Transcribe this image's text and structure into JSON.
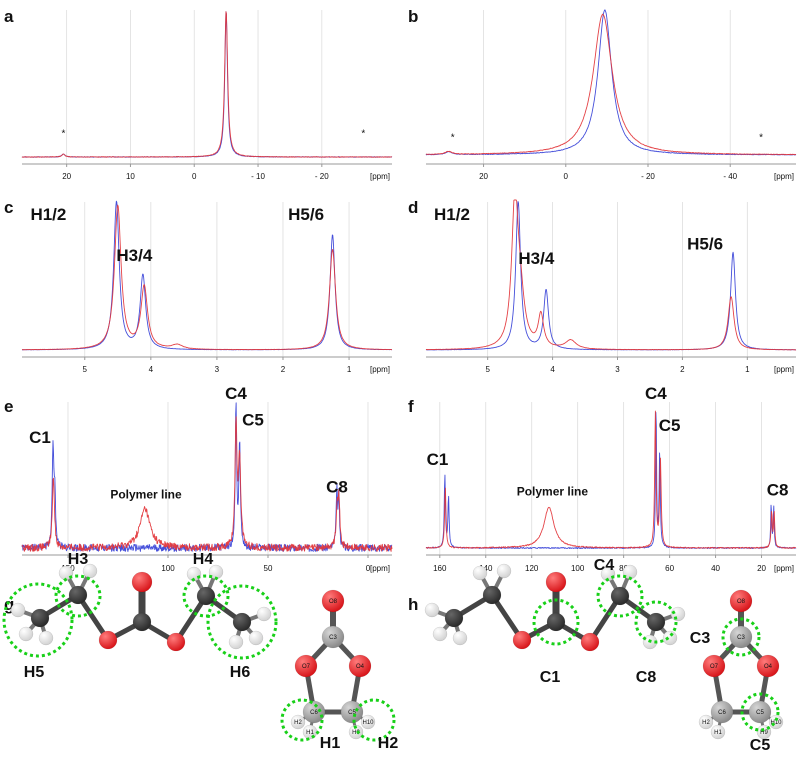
{
  "colors": {
    "series_blue": "#3b46d8",
    "series_red": "#e3383c",
    "axis": "#999999",
    "grid": "#dddddd",
    "highlight": "#19d019"
  },
  "chart_data": [
    {
      "panel": "a",
      "type": "line",
      "unit_label": "[ppm]",
      "xlim": [
        27,
        -31
      ],
      "ticks": [
        20,
        10,
        0,
        -10,
        -20
      ],
      "tick_labels": [
        "20",
        "10",
        "0",
        "- 10",
        "- 20"
      ],
      "series": [
        {
          "name": "blue",
          "color": "#3b46d8",
          "peaks": [
            {
              "pos": -5.0,
              "width": 0.25,
              "height": 1.0
            },
            {
              "pos": 20.5,
              "width": 0.3,
              "height": 0.02
            }
          ]
        },
        {
          "name": "red",
          "color": "#e3383c",
          "peaks": [
            {
              "pos": -5.0,
              "width": 0.28,
              "height": 1.0
            },
            {
              "pos": 20.5,
              "width": 0.3,
              "height": 0.02
            }
          ]
        }
      ],
      "annotations": [
        {
          "text": "*",
          "x": 20.5,
          "y": 0.14
        },
        {
          "text": "*",
          "x": -26.5,
          "y": 0.14
        }
      ],
      "noise": 0.002
    },
    {
      "panel": "b",
      "type": "line",
      "unit_label": "[ppm]",
      "xlim": [
        34,
        -56
      ],
      "ticks": [
        20,
        0,
        -20,
        -40
      ],
      "tick_labels": [
        "20",
        "0",
        "- 20",
        "- 40"
      ],
      "series": [
        {
          "name": "blue",
          "color": "#3b46d8",
          "peaks": [
            {
              "pos": -9.5,
              "width": 2.0,
              "height": 1.0
            },
            {
              "pos": 28.5,
              "width": 1.0,
              "height": 0.02
            }
          ]
        },
        {
          "name": "red",
          "color": "#e3383c",
          "peaks": [
            {
              "pos": -9.0,
              "width": 2.8,
              "height": 0.97
            },
            {
              "pos": 28.5,
              "width": 1.0,
              "height": 0.02
            }
          ]
        }
      ],
      "annotations": [
        {
          "text": "*",
          "x": 27.5,
          "y": 0.1
        },
        {
          "text": "*",
          "x": -47.5,
          "y": 0.1
        }
      ],
      "noise": 0.002
    },
    {
      "panel": "c",
      "type": "line",
      "unit_label": "[ppm]",
      "xlim": [
        5.95,
        0.35
      ],
      "ticks": [
        5,
        4,
        3,
        2,
        1
      ],
      "tick_labels": [
        "5",
        "4",
        "3",
        "2",
        "1"
      ],
      "series": [
        {
          "name": "blue",
          "color": "#3b46d8",
          "peaks": [
            {
              "pos": 4.52,
              "width": 0.05,
              "height": 1.0
            },
            {
              "pos": 4.12,
              "width": 0.05,
              "height": 0.5
            },
            {
              "pos": 1.25,
              "width": 0.045,
              "height": 0.78
            }
          ]
        },
        {
          "name": "red",
          "color": "#e3383c",
          "peaks": [
            {
              "pos": 4.5,
              "width": 0.06,
              "height": 0.97
            },
            {
              "pos": 4.1,
              "width": 0.06,
              "height": 0.42
            },
            {
              "pos": 3.6,
              "width": 0.1,
              "height": 0.03
            },
            {
              "pos": 1.25,
              "width": 0.055,
              "height": 0.68
            }
          ]
        }
      ],
      "annotations": [
        {
          "text": "H1/2",
          "x": 5.55,
          "y": 0.88
        },
        {
          "text": "H3/4",
          "x": 4.25,
          "y": 0.6
        },
        {
          "text": "H5/6",
          "x": 1.65,
          "y": 0.88
        }
      ],
      "noise": 0.001
    },
    {
      "panel": "d",
      "type": "line",
      "unit_label": "[ppm]",
      "xlim": [
        5.95,
        0.25
      ],
      "ticks": [
        5,
        4,
        3,
        2,
        1
      ],
      "tick_labels": [
        "5",
        "4",
        "3",
        "2",
        "1"
      ],
      "series": [
        {
          "name": "blue",
          "color": "#3b46d8",
          "peaks": [
            {
              "pos": 4.53,
              "width": 0.045,
              "height": 1.0
            },
            {
              "pos": 4.1,
              "width": 0.045,
              "height": 0.4
            },
            {
              "pos": 1.22,
              "width": 0.045,
              "height": 0.66
            }
          ]
        },
        {
          "name": "red",
          "color": "#e3383c",
          "peaks": [
            {
              "pos": 4.58,
              "width": 0.06,
              "height": 0.95
            },
            {
              "pos": 4.5,
              "width": 0.08,
              "height": 0.3
            },
            {
              "pos": 4.18,
              "width": 0.05,
              "height": 0.22
            },
            {
              "pos": 3.72,
              "width": 0.1,
              "height": 0.06
            },
            {
              "pos": 1.25,
              "width": 0.055,
              "height": 0.36
            }
          ]
        }
      ],
      "annotations": [
        {
          "text": "H1/2",
          "x": 5.55,
          "y": 0.88
        },
        {
          "text": "H3/4",
          "x": 4.25,
          "y": 0.58
        },
        {
          "text": "H5/6",
          "x": 1.65,
          "y": 0.68
        }
      ],
      "noise": 0.001
    },
    {
      "panel": "e",
      "type": "line",
      "unit_label": "[ppm]",
      "xlim": [
        173,
        -12
      ],
      "ticks": [
        150,
        100,
        50,
        0
      ],
      "tick_labels": [
        "150",
        "100",
        "50",
        "0"
      ],
      "series": [
        {
          "name": "blue",
          "color": "#3b46d8",
          "peaks": [
            {
              "pos": 157.5,
              "width": 0.5,
              "height": 0.68
            },
            {
              "pos": 156.6,
              "width": 0.4,
              "height": 0.34
            },
            {
              "pos": 66.0,
              "width": 0.4,
              "height": 1.0
            },
            {
              "pos": 64.2,
              "width": 0.45,
              "height": 0.72
            },
            {
              "pos": 15.6,
              "width": 0.4,
              "height": 0.38
            },
            {
              "pos": 14.6,
              "width": 0.4,
              "height": 0.34
            }
          ]
        },
        {
          "name": "red",
          "color": "#e3383c",
          "peaks": [
            {
              "pos": 157.3,
              "width": 0.6,
              "height": 0.5
            },
            {
              "pos": 111.5,
              "width": 3.0,
              "height": 0.27
            },
            {
              "pos": 66.0,
              "width": 0.6,
              "height": 0.82
            },
            {
              "pos": 64.2,
              "width": 0.7,
              "height": 0.6
            },
            {
              "pos": 15.4,
              "width": 0.6,
              "height": 0.3
            },
            {
              "pos": 14.5,
              "width": 0.5,
              "height": 0.28
            }
          ]
        }
      ],
      "annotations": [
        {
          "text": "C1",
          "x": 164.0,
          "y": 0.72
        },
        {
          "text": "Polymer line",
          "x": 111.0,
          "y": 0.34,
          "small": true
        },
        {
          "text": "C4",
          "x": 66.0,
          "y": 1.02
        },
        {
          "text": "C5",
          "x": 57.5,
          "y": 0.84
        },
        {
          "text": "C8",
          "x": 15.5,
          "y": 0.38
        }
      ],
      "noise": 0.025
    },
    {
      "panel": "f",
      "type": "line",
      "unit_label": "[ppm]",
      "xlim": [
        166,
        5
      ],
      "ticks": [
        160,
        140,
        120,
        100,
        80,
        60,
        40,
        20
      ],
      "tick_labels": [
        "160",
        "140",
        "120",
        "100",
        "80",
        "60",
        "40",
        "20"
      ],
      "series": [
        {
          "name": "blue",
          "color": "#3b46d8",
          "peaks": [
            {
              "pos": 157.8,
              "width": 0.3,
              "height": 0.5
            },
            {
              "pos": 156.2,
              "width": 0.3,
              "height": 0.35
            },
            {
              "pos": 65.9,
              "width": 0.25,
              "height": 1.0
            },
            {
              "pos": 64.3,
              "width": 0.3,
              "height": 0.66
            },
            {
              "pos": 15.8,
              "width": 0.25,
              "height": 0.3
            },
            {
              "pos": 14.7,
              "width": 0.25,
              "height": 0.28
            }
          ]
        },
        {
          "name": "red",
          "color": "#e3383c",
          "peaks": [
            {
              "pos": 157.6,
              "width": 0.35,
              "height": 0.42
            },
            {
              "pos": 112.5,
              "width": 2.6,
              "height": 0.28
            },
            {
              "pos": 66.2,
              "width": 0.35,
              "height": 0.92
            },
            {
              "pos": 64.0,
              "width": 0.4,
              "height": 0.6
            },
            {
              "pos": 15.6,
              "width": 0.3,
              "height": 0.25
            },
            {
              "pos": 14.5,
              "width": 0.3,
              "height": 0.24
            }
          ]
        }
      ],
      "annotations": [
        {
          "text": "C1",
          "x": 161.0,
          "y": 0.57
        },
        {
          "text": "Polymer line",
          "x": 111.0,
          "y": 0.36,
          "small": true
        },
        {
          "text": "C4",
          "x": 66.0,
          "y": 1.02
        },
        {
          "text": "C5",
          "x": 60.0,
          "y": 0.8
        },
        {
          "text": "C8",
          "x": 13.0,
          "y": 0.36
        }
      ],
      "noise": 0.004
    }
  ],
  "molecules": {
    "g": {
      "panel_label": "g",
      "chain_labels": [
        "H3",
        "H4",
        "H5",
        "H6"
      ],
      "ring_labels": [
        "H1",
        "H2"
      ],
      "atom_labels": [
        "O8",
        "C3",
        "O7",
        "O4",
        "C6",
        "C5",
        "H2",
        "H1",
        "H9",
        "H10"
      ]
    },
    "h": {
      "panel_label": "h",
      "chain_labels": [
        "C4",
        "C1",
        "C8"
      ],
      "ring_labels": [
        "C3",
        "C5"
      ],
      "atom_labels": [
        "O8",
        "C3",
        "O7",
        "O4",
        "C6",
        "C5",
        "H2",
        "H1",
        "H9",
        "H10"
      ]
    }
  }
}
